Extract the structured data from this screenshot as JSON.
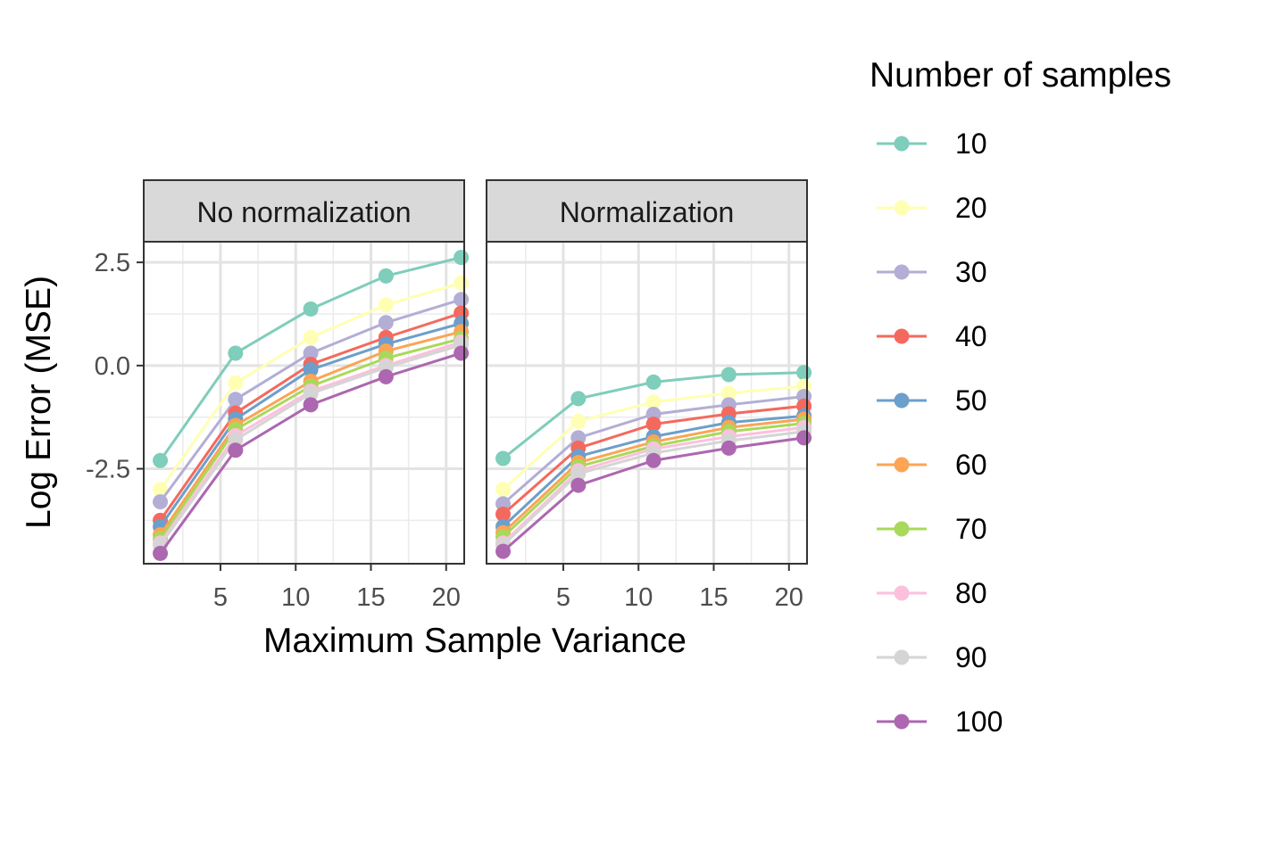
{
  "chart_data": {
    "type": "line",
    "xlabel": "Maximum Sample Variance",
    "ylabel": "Log Error (MSE)",
    "x": [
      1,
      6,
      11,
      16,
      21
    ],
    "xlim": [
      -0.1,
      21.2
    ],
    "ylim": [
      -4.8,
      3.0
    ],
    "xticks": [
      5,
      10,
      15,
      20
    ],
    "xtick_labels": [
      "5",
      "10",
      "15",
      "20"
    ],
    "yticks": [
      -2.5,
      0.0,
      2.5
    ],
    "ytick_labels": [
      "-2.5",
      "0.0",
      "2.5"
    ],
    "grid": true,
    "legend": {
      "title": "Number of samples",
      "position": "right"
    },
    "panels": [
      {
        "title": "No normalization",
        "series": [
          {
            "name": "10",
            "color": "#7fcdbb",
            "values": [
              -2.3,
              0.3,
              1.37,
              2.17,
              2.62
            ]
          },
          {
            "name": "20",
            "color": "#ffffb3",
            "values": [
              -3.0,
              -0.42,
              0.68,
              1.47,
              2.0
            ]
          },
          {
            "name": "30",
            "color": "#b3aed5",
            "values": [
              -3.3,
              -0.82,
              0.3,
              1.04,
              1.6
            ]
          },
          {
            "name": "40",
            "color": "#f4695e",
            "values": [
              -3.75,
              -1.15,
              0.03,
              0.68,
              1.27
            ]
          },
          {
            "name": "50",
            "color": "#6c9fcb",
            "values": [
              -3.9,
              -1.3,
              -0.1,
              0.52,
              1.02
            ]
          },
          {
            "name": "60",
            "color": "#fba555",
            "values": [
              -4.1,
              -1.45,
              -0.38,
              0.35,
              0.82
            ]
          },
          {
            "name": "70",
            "color": "#a8d95c",
            "values": [
              -4.2,
              -1.55,
              -0.5,
              0.18,
              0.65
            ]
          },
          {
            "name": "80",
            "color": "#fcc0dd",
            "values": [
              -4.3,
              -1.7,
              -0.62,
              0.0,
              0.57
            ]
          },
          {
            "name": "90",
            "color": "#d5d5d5",
            "values": [
              -4.35,
              -1.8,
              -0.68,
              -0.05,
              0.5
            ]
          },
          {
            "name": "100",
            "color": "#ac67b0",
            "values": [
              -4.55,
              -2.05,
              -0.95,
              -0.27,
              0.3
            ]
          }
        ]
      },
      {
        "title": "Normalization",
        "series": [
          {
            "name": "10",
            "color": "#7fcdbb",
            "values": [
              -2.25,
              -0.8,
              -0.4,
              -0.22,
              -0.17
            ]
          },
          {
            "name": "20",
            "color": "#ffffb3",
            "values": [
              -3.0,
              -1.35,
              -0.88,
              -0.67,
              -0.5
            ]
          },
          {
            "name": "30",
            "color": "#b3aed5",
            "values": [
              -3.35,
              -1.75,
              -1.18,
              -0.95,
              -0.75
            ]
          },
          {
            "name": "40",
            "color": "#f4695e",
            "values": [
              -3.6,
              -2.0,
              -1.42,
              -1.17,
              -0.98
            ]
          },
          {
            "name": "50",
            "color": "#6c9fcb",
            "values": [
              -3.9,
              -2.2,
              -1.72,
              -1.38,
              -1.22
            ]
          },
          {
            "name": "60",
            "color": "#fba555",
            "values": [
              -4.05,
              -2.35,
              -1.85,
              -1.5,
              -1.3
            ]
          },
          {
            "name": "70",
            "color": "#a8d95c",
            "values": [
              -4.15,
              -2.45,
              -1.95,
              -1.6,
              -1.4
            ]
          },
          {
            "name": "80",
            "color": "#fcc0dd",
            "values": [
              -4.3,
              -2.55,
              -2.02,
              -1.72,
              -1.5
            ]
          },
          {
            "name": "90",
            "color": "#d5d5d5",
            "values": [
              -4.35,
              -2.62,
              -2.12,
              -1.82,
              -1.6
            ]
          },
          {
            "name": "100",
            "color": "#ac67b0",
            "values": [
              -4.5,
              -2.9,
              -2.3,
              -2.0,
              -1.75
            ]
          }
        ]
      }
    ]
  }
}
